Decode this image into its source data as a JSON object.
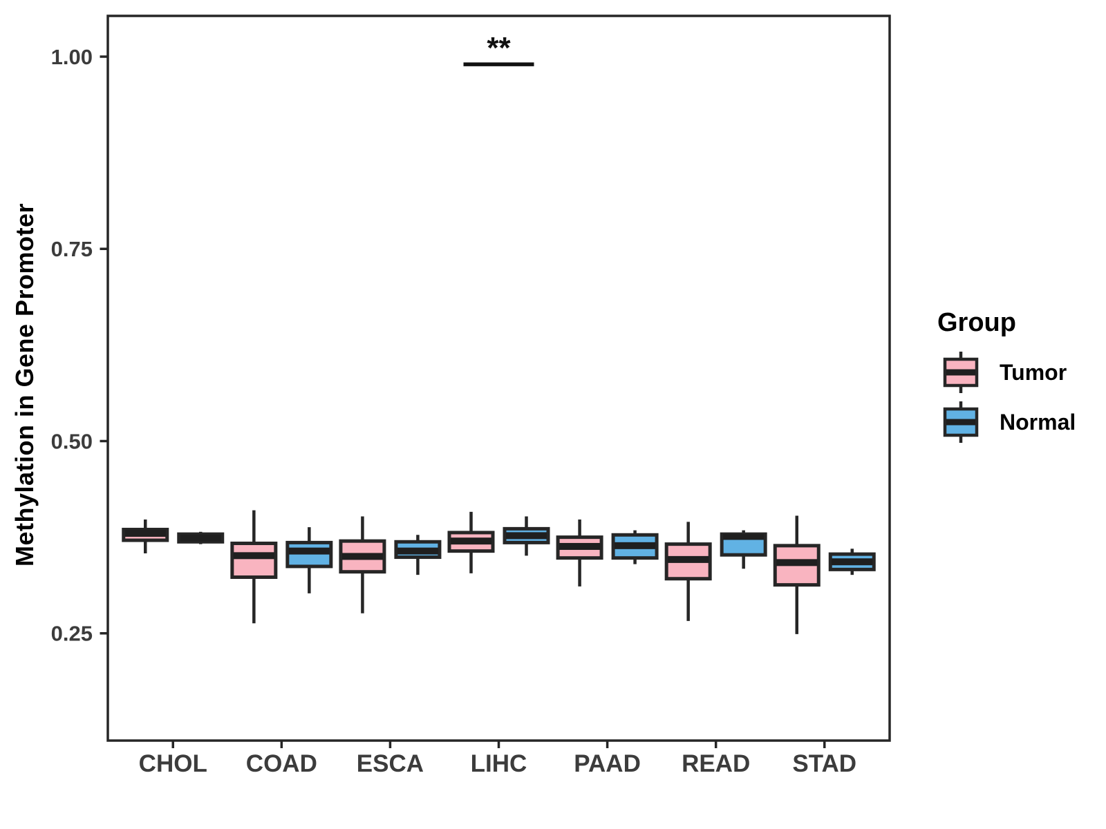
{
  "figure": {
    "background": "#FFFFFF"
  },
  "y_axis": {
    "label": "Methylation in Gene Promoter",
    "tick_labels": [
      "0.25",
      "0.50",
      "0.75",
      "1.00"
    ],
    "tick_values": [
      0.25,
      0.5,
      0.75,
      1.0
    ]
  },
  "legend": {
    "title": "Group",
    "items": [
      {
        "label": "Tumor",
        "color": "#F9B4C0"
      },
      {
        "label": "Normal",
        "color": "#61B2E4"
      }
    ]
  },
  "chart_data": {
    "type": "boxplot",
    "title": "",
    "xlabel": "",
    "ylabel": "Methylation in Gene Promoter",
    "categories": [
      "CHOL",
      "COAD",
      "ESCA",
      "LIHC",
      "PAAD",
      "READ",
      "STAD"
    ],
    "y_ticks": [
      0.25,
      0.5,
      0.75,
      1.0
    ],
    "y_tick_labels": [
      "0.25",
      "0.50",
      "0.75",
      "1.00"
    ],
    "ylim": [
      0.1105,
      1.053
    ],
    "grid": false,
    "legend_position": "right",
    "series": [
      {
        "name": "Tumor",
        "fill": "#F9B4C0",
        "boxes": [
          {
            "category": "CHOL",
            "min": 0.354,
            "q1": 0.371,
            "median": 0.38,
            "q3": 0.385,
            "max": 0.398
          },
          {
            "category": "COAD",
            "min": 0.263,
            "q1": 0.323,
            "median": 0.351,
            "q3": 0.367,
            "max": 0.41
          },
          {
            "category": "ESCA",
            "min": 0.276,
            "q1": 0.33,
            "median": 0.35,
            "q3": 0.37,
            "max": 0.402
          },
          {
            "category": "LIHC",
            "min": 0.328,
            "q1": 0.357,
            "median": 0.37,
            "q3": 0.381,
            "max": 0.408
          },
          {
            "category": "PAAD",
            "min": 0.311,
            "q1": 0.348,
            "median": 0.363,
            "q3": 0.375,
            "max": 0.398
          },
          {
            "category": "READ",
            "min": 0.266,
            "q1": 0.321,
            "median": 0.346,
            "q3": 0.366,
            "max": 0.395
          },
          {
            "category": "STAD",
            "min": 0.249,
            "q1": 0.313,
            "median": 0.342,
            "q3": 0.364,
            "max": 0.403
          }
        ]
      },
      {
        "name": "Normal",
        "fill": "#61B2E4",
        "boxes": [
          {
            "category": "CHOL",
            "min": 0.366,
            "q1": 0.369,
            "median": 0.374,
            "q3": 0.379,
            "max": 0.382
          },
          {
            "category": "COAD",
            "min": 0.302,
            "q1": 0.337,
            "median": 0.357,
            "q3": 0.368,
            "max": 0.388
          },
          {
            "category": "ESCA",
            "min": 0.326,
            "q1": 0.349,
            "median": 0.357,
            "q3": 0.369,
            "max": 0.378
          },
          {
            "category": "LIHC",
            "min": 0.351,
            "q1": 0.368,
            "median": 0.377,
            "q3": 0.386,
            "max": 0.402
          },
          {
            "category": "PAAD",
            "min": 0.34,
            "q1": 0.348,
            "median": 0.364,
            "q3": 0.378,
            "max": 0.384
          },
          {
            "category": "READ",
            "min": 0.334,
            "q1": 0.352,
            "median": 0.376,
            "q3": 0.379,
            "max": 0.384
          },
          {
            "category": "STAD",
            "min": 0.326,
            "q1": 0.333,
            "median": 0.343,
            "q3": 0.353,
            "max": 0.36
          }
        ]
      }
    ],
    "annotations": [
      {
        "label": "**",
        "category": "LIHC",
        "line_y": 0.99
      }
    ],
    "style": {
      "box_stroke": "#262626",
      "median_color": "#1F1F1F",
      "axis_color": "#262626",
      "tick_text_color": "#3C3C3C",
      "annotation_color": "#111111"
    }
  }
}
